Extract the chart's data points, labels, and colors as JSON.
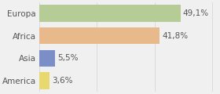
{
  "categories": [
    "Europa",
    "Africa",
    "Asia",
    "America"
  ],
  "values": [
    49.1,
    41.8,
    5.5,
    3.6
  ],
  "labels": [
    "49,1%",
    "41,8%",
    "5,5%",
    "3,6%"
  ],
  "bar_colors": [
    "#b5cc96",
    "#e8b98a",
    "#7b8ec8",
    "#e8d870"
  ],
  "background_color": "#f0f0f0",
  "xlim": [
    0,
    62
  ],
  "bar_height": 0.75,
  "label_fontsize": 7.5,
  "tick_fontsize": 7.5,
  "grid_color": "#d8d8d8"
}
